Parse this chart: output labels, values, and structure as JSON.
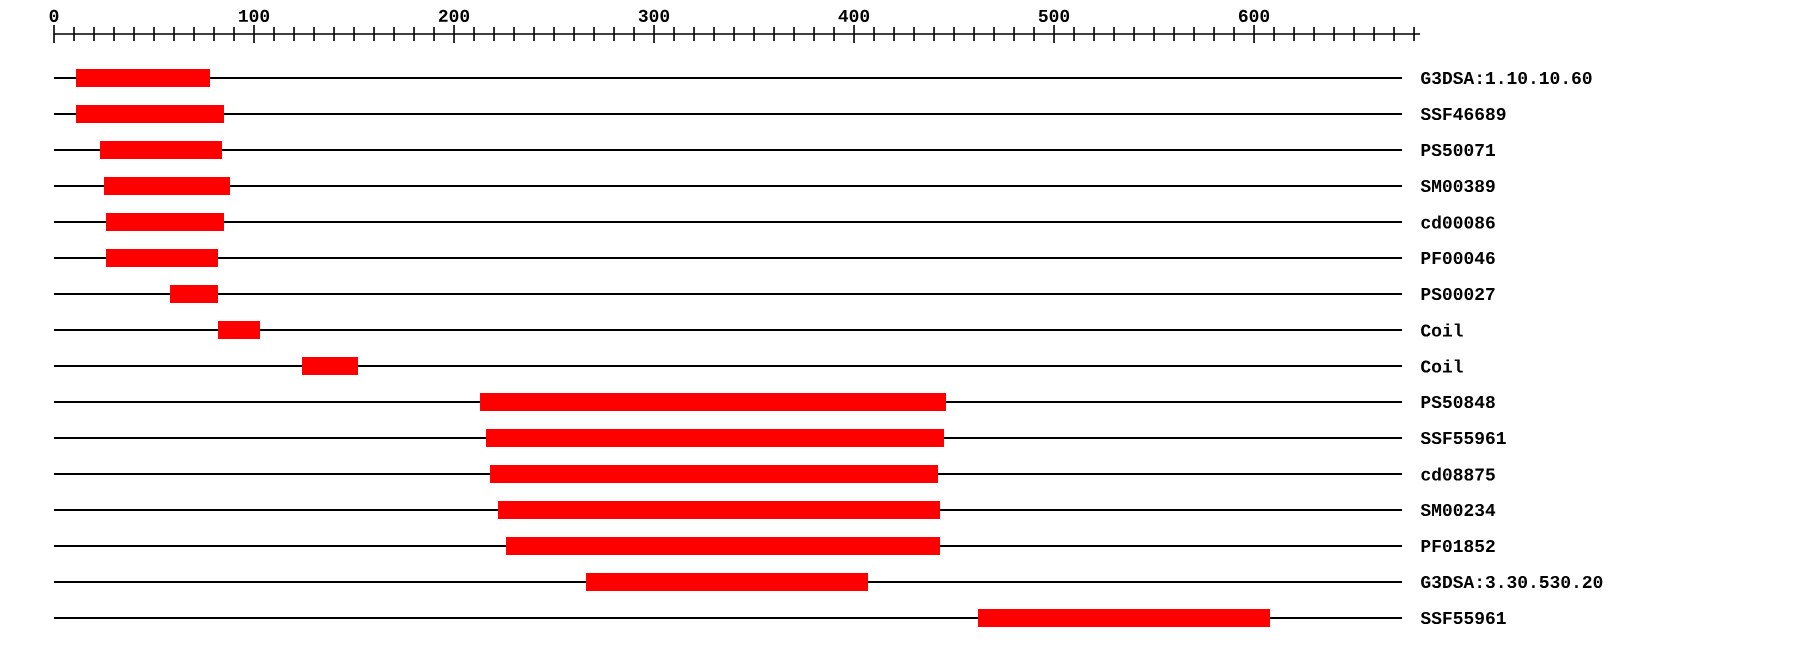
{
  "chart_data": {
    "type": "bar",
    "orientation": "horizontal",
    "categories": [
      "G3DSA:1.10.10.60",
      "SSF46689",
      "PS50071",
      "SM00389",
      "cd00086",
      "PF00046",
      "PS00027",
      "Coil",
      "Coil",
      "PS50848",
      "SSF55961",
      "cd08875",
      "SM00234",
      "PF01852",
      "G3DSA:3.30.530.20",
      "SSF55961"
    ],
    "base": [
      11,
      11,
      23,
      25,
      26,
      26,
      58,
      82,
      124,
      213,
      216,
      218,
      222,
      226,
      266,
      462
    ],
    "values": [
      67,
      74,
      61,
      63,
      59,
      56,
      24,
      21,
      28,
      233,
      229,
      224,
      221,
      217,
      141,
      146
    ],
    "color": "#ff0000",
    "grid": "y",
    "xlim": [
      0,
      683
    ],
    "xticks": [
      0,
      {
        "value": 10,
        "label": null
      },
      {
        "value": 20,
        "label": null
      },
      {
        "value": 30,
        "label": null
      },
      {
        "value": 40,
        "label": null
      },
      {
        "value": 50,
        "label": null
      },
      {
        "value": 60,
        "label": null
      },
      {
        "value": 70,
        "label": null
      },
      {
        "value": 80,
        "label": null
      },
      {
        "value": 90,
        "label": null
      },
      100,
      {
        "value": 110,
        "label": null
      },
      {
        "value": 120,
        "label": null
      },
      {
        "value": 130,
        "label": null
      },
      {
        "value": 140,
        "label": null
      },
      {
        "value": 150,
        "label": null
      },
      {
        "value": 160,
        "label": null
      },
      {
        "value": 170,
        "label": null
      },
      {
        "value": 180,
        "label": null
      },
      {
        "value": 190,
        "label": null
      },
      200,
      {
        "value": 210,
        "label": null
      },
      {
        "value": 220,
        "label": null
      },
      {
        "value": 230,
        "label": null
      },
      {
        "value": 240,
        "label": null
      },
      {
        "value": 250,
        "label": null
      },
      {
        "value": 260,
        "label": null
      },
      {
        "value": 270,
        "label": null
      },
      {
        "value": 280,
        "label": null
      },
      {
        "value": 290,
        "label": null
      },
      300,
      {
        "value": 310,
        "label": null
      },
      {
        "value": 320,
        "label": null
      },
      {
        "value": 330,
        "label": null
      },
      {
        "value": 340,
        "label": null
      },
      {
        "value": 350,
        "label": null
      },
      {
        "value": 360,
        "label": null
      },
      {
        "value": 370,
        "label": null
      },
      {
        "value": 380,
        "label": null
      },
      {
        "value": 390,
        "label": null
      },
      400,
      {
        "value": 410,
        "label": null
      },
      {
        "value": 420,
        "label": null
      },
      {
        "value": 430,
        "label": null
      },
      {
        "value": 440,
        "label": null
      },
      {
        "value": 450,
        "label": null
      },
      {
        "value": 460,
        "label": null
      },
      {
        "value": 470,
        "label": null
      },
      {
        "value": 480,
        "label": null
      },
      {
        "value": 490,
        "label": null
      },
      500,
      {
        "value": 510,
        "label": null
      },
      {
        "value": 520,
        "label": null
      },
      {
        "value": 530,
        "label": null
      },
      {
        "value": 540,
        "label": null
      },
      {
        "value": 550,
        "label": null
      },
      {
        "value": 560,
        "label": null
      },
      {
        "value": 570,
        "label": null
      },
      {
        "value": 580,
        "label": null
      },
      {
        "value": 590,
        "label": null
      },
      600,
      {
        "value": 610,
        "label": null
      },
      {
        "value": 620,
        "label": null
      },
      {
        "value": 630,
        "label": null
      },
      {
        "value": 640,
        "label": null
      },
      {
        "value": 650,
        "label": null
      },
      {
        "value": 660,
        "label": null
      },
      {
        "value": 670,
        "label": null
      },
      {
        "value": 680,
        "label": null
      }
    ]
  }
}
